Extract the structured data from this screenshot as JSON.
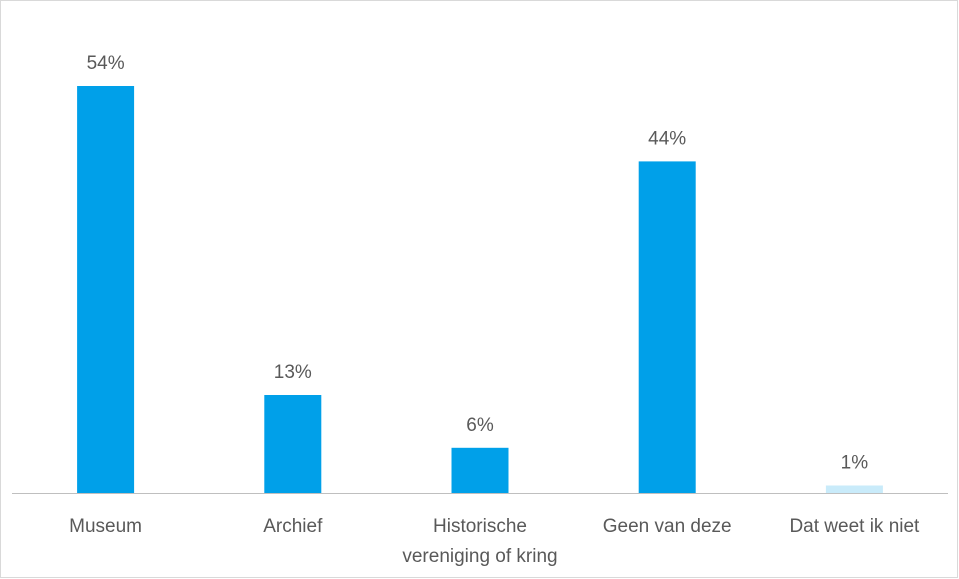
{
  "chart_data": {
    "type": "bar",
    "title": "",
    "xlabel": "",
    "ylabel": "",
    "ylim": [
      0,
      60
    ],
    "grid": false,
    "legend": "none",
    "categories": [
      "Museum",
      "Archief",
      "Historische vereniging of kring",
      "Geen van deze",
      "Dat weet ik niet"
    ],
    "category_label_lines": [
      [
        "Museum"
      ],
      [
        "Archief"
      ],
      [
        "Historische",
        "vereniging of kring"
      ],
      [
        "Geen van deze"
      ],
      [
        "Dat weet ik niet"
      ]
    ],
    "values": [
      54,
      13,
      6,
      44,
      1
    ],
    "data_labels": [
      "54%",
      "13%",
      "6%",
      "44%",
      "1%"
    ],
    "bar_colors": [
      "#00A0E9",
      "#00A0E9",
      "#00A0E9",
      "#00A0E9",
      "#C9EBFA"
    ],
    "axis_color": "#bfbfbf",
    "text_color": "#595959",
    "border_color": "#d9d9d9"
  }
}
